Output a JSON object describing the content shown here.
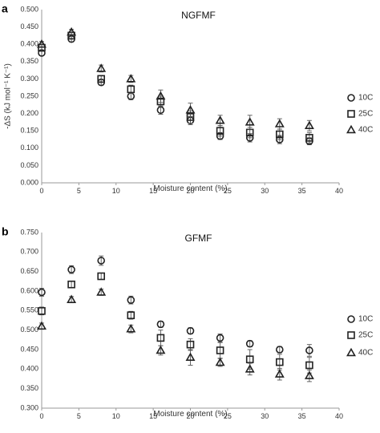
{
  "chart_data": [
    {
      "type": "scatter",
      "panel_label": "a",
      "title": "NGFMF",
      "xlabel": "Moisture content (%)",
      "ylabel": "-ΔS (kJ mol⁻¹ K⁻¹)",
      "xlim": [
        0,
        40
      ],
      "ylim": [
        0,
        0.5
      ],
      "xticks": [
        "0",
        "5",
        "10",
        "15",
        "20",
        "25",
        "30",
        "35",
        "40"
      ],
      "yticks": [
        "0.000",
        "0.050",
        "0.100",
        "0.150",
        "0.200",
        "0.250",
        "0.300",
        "0.350",
        "0.400",
        "0.450",
        "0.500"
      ],
      "grid": false,
      "legend_position": "right",
      "series": [
        {
          "name": "10C",
          "marker": "circle",
          "x": [
            0,
            4,
            8,
            12,
            16,
            20,
            24,
            28,
            32,
            36
          ],
          "y": [
            0.375,
            0.415,
            0.29,
            0.25,
            0.21,
            0.18,
            0.135,
            0.13,
            0.125,
            0.12
          ],
          "err": [
            0.008,
            0.008,
            0.008,
            0.01,
            0.012,
            0.012,
            0.01,
            0.012,
            0.012,
            0.01
          ]
        },
        {
          "name": "25C",
          "marker": "square",
          "x": [
            0,
            4,
            8,
            12,
            16,
            20,
            24,
            28,
            32,
            36
          ],
          "y": [
            0.39,
            0.425,
            0.3,
            0.27,
            0.235,
            0.19,
            0.15,
            0.145,
            0.14,
            0.13
          ],
          "err": [
            0.01,
            0.01,
            0.01,
            0.012,
            0.015,
            0.018,
            0.015,
            0.015,
            0.015,
            0.015
          ]
        },
        {
          "name": "40C",
          "marker": "triangle",
          "x": [
            0,
            4,
            8,
            12,
            16,
            20,
            24,
            28,
            32,
            36
          ],
          "y": [
            0.4,
            0.435,
            0.33,
            0.3,
            0.25,
            0.21,
            0.18,
            0.175,
            0.17,
            0.165
          ],
          "err": [
            0.008,
            0.008,
            0.01,
            0.01,
            0.018,
            0.02,
            0.015,
            0.02,
            0.015,
            0.015
          ]
        }
      ]
    },
    {
      "type": "scatter",
      "panel_label": "b",
      "title": "GFMF",
      "xlabel": "Moisture content (%)",
      "ylabel": "",
      "xlim": [
        0,
        40
      ],
      "ylim": [
        0.3,
        0.75
      ],
      "xticks": [
        "0",
        "5",
        "10",
        "15",
        "20",
        "25",
        "30",
        "35",
        "40"
      ],
      "yticks": [
        "0.300",
        "0.350",
        "0.400",
        "0.450",
        "0.500",
        "0.550",
        "0.600",
        "0.650",
        "0.700",
        "0.750"
      ],
      "grid": false,
      "legend_position": "right",
      "series": [
        {
          "name": "10C",
          "marker": "circle",
          "x": [
            0,
            4,
            8,
            12,
            16,
            20,
            24,
            28,
            32,
            36
          ],
          "y": [
            0.597,
            0.655,
            0.678,
            0.577,
            0.515,
            0.498,
            0.48,
            0.465,
            0.45,
            0.448
          ],
          "err": [
            0.01,
            0.01,
            0.012,
            0.01,
            0.008,
            0.008,
            0.01,
            0.008,
            0.008,
            0.015
          ]
        },
        {
          "name": "25C",
          "marker": "square",
          "x": [
            0,
            4,
            8,
            12,
            16,
            20,
            24,
            28,
            32,
            36
          ],
          "y": [
            0.549,
            0.617,
            0.638,
            0.538,
            0.48,
            0.463,
            0.448,
            0.425,
            0.418,
            0.41
          ],
          "err": [
            0.01,
            0.008,
            0.008,
            0.01,
            0.02,
            0.015,
            0.02,
            0.025,
            0.02,
            0.02
          ]
        },
        {
          "name": "40C",
          "marker": "triangle",
          "x": [
            0,
            4,
            8,
            12,
            16,
            20,
            24,
            28,
            32,
            36
          ],
          "y": [
            0.51,
            0.578,
            0.597,
            0.503,
            0.448,
            0.43,
            0.417,
            0.4,
            0.387,
            0.383
          ],
          "err": [
            0.008,
            0.008,
            0.008,
            0.01,
            0.012,
            0.02,
            0.01,
            0.015,
            0.015,
            0.015
          ]
        }
      ]
    }
  ]
}
